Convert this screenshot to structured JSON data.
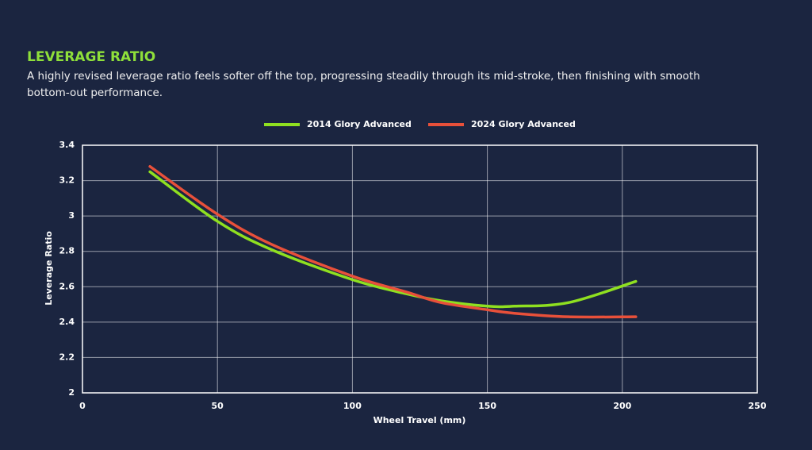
{
  "header": {
    "title": "LEVERAGE RATIO",
    "description": "A highly revised leverage ratio feels softer off the top, progressing steadily through its mid-stroke, then finishing with smooth bottom-out performance."
  },
  "chart_data": {
    "type": "line",
    "x": [
      25,
      50,
      70,
      100,
      120,
      133,
      150,
      160,
      180,
      205
    ],
    "series": [
      {
        "name": "2014 Glory Advanced",
        "color": "#8fe020",
        "values": [
          3.25,
          2.97,
          2.81,
          2.64,
          2.56,
          2.52,
          2.49,
          2.49,
          2.51,
          2.63
        ]
      },
      {
        "name": "2024 Glory Advanced",
        "color": "#e8503a",
        "values": [
          3.28,
          3.01,
          2.84,
          2.66,
          2.57,
          2.51,
          2.47,
          2.45,
          2.43,
          2.43
        ]
      }
    ],
    "xlabel": "Wheel Travel (mm)",
    "ylabel": "Leverage Ratio",
    "xlim": [
      0,
      250
    ],
    "xticks": [
      0,
      50,
      100,
      150,
      200,
      250
    ],
    "ylim": [
      2,
      3.4
    ],
    "yticks": [
      2,
      2.2,
      2.4,
      2.6,
      2.8,
      3,
      3.2,
      3.4
    ],
    "grid": true,
    "legend": "top"
  }
}
